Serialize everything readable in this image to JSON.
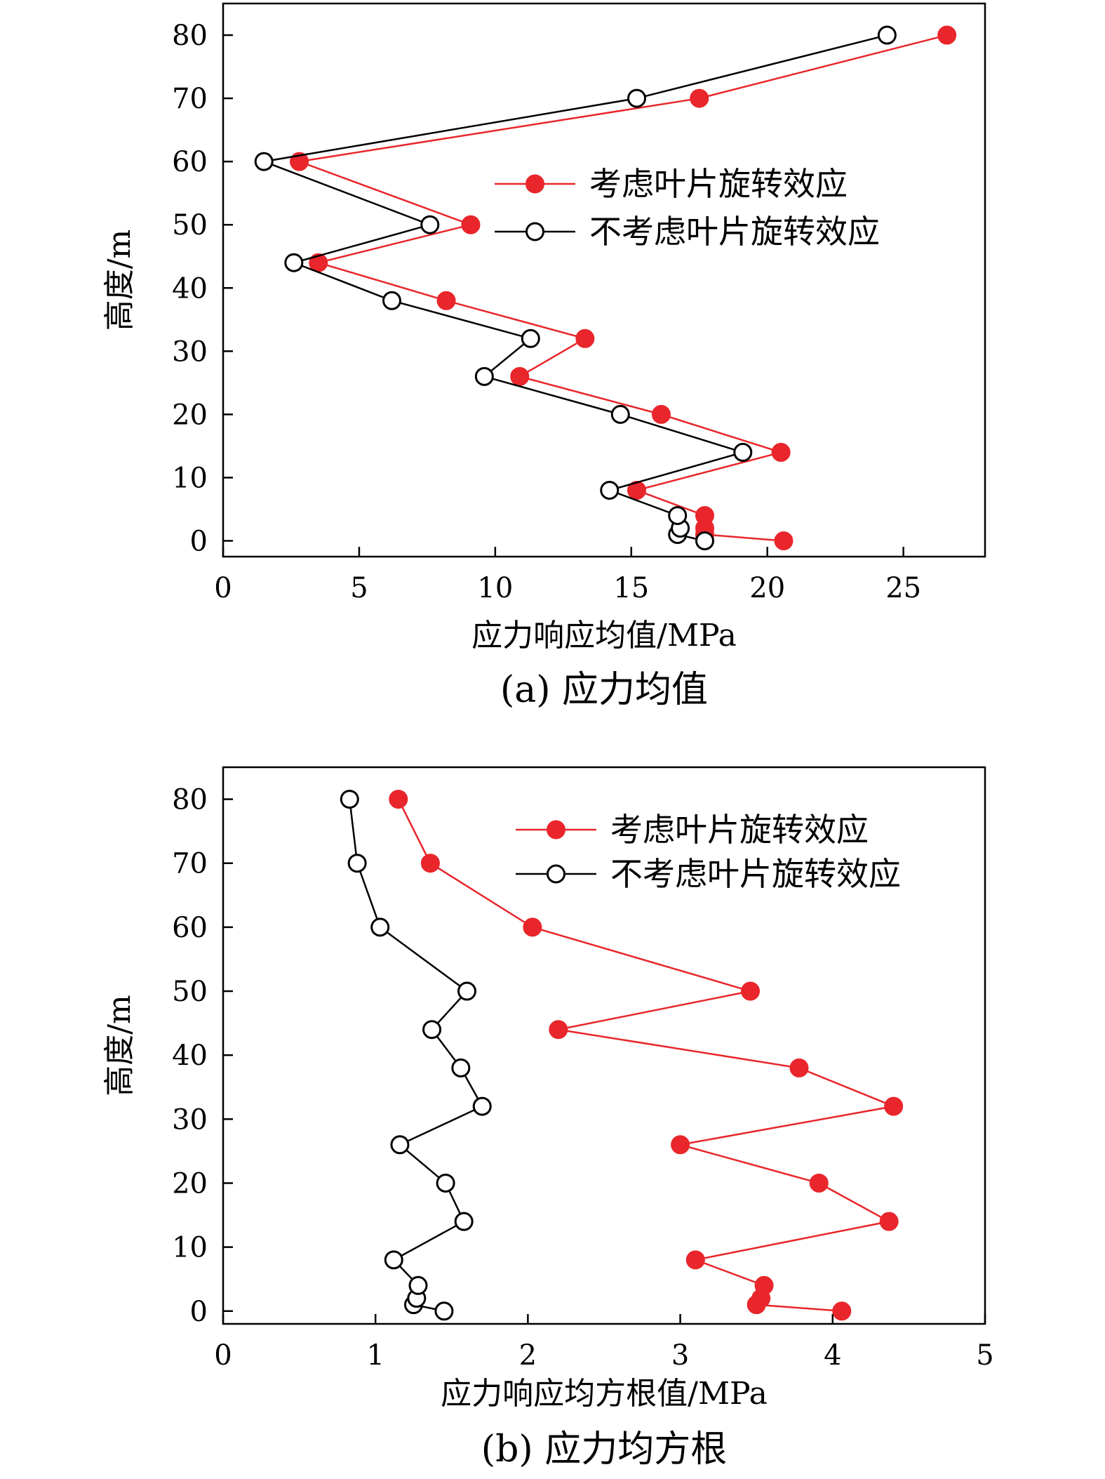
{
  "colors": {
    "considered": "#e8262b",
    "not_considered": "#000000",
    "axis": "#000000"
  },
  "chart_data": [
    {
      "type": "line",
      "caption": "(a) 应力均值",
      "xlabel": "应力响应均值/MPa",
      "ylabel": "高度/m",
      "xlim": [
        0,
        28
      ],
      "ylim": [
        -2.5,
        85
      ],
      "xticks": [
        0,
        5,
        10,
        15,
        20,
        25
      ],
      "yticks": [
        0,
        10,
        20,
        30,
        40,
        50,
        60,
        70,
        80
      ],
      "grid": false,
      "legend_position": "upper-right",
      "series": [
        {
          "name": "考虑叶片旋转效应",
          "color": "#e8262b",
          "marker": "filled-circle",
          "points": [
            [
              20.6,
              0
            ],
            [
              17.7,
              1
            ],
            [
              17.7,
              2
            ],
            [
              17.7,
              4
            ],
            [
              15.2,
              8
            ],
            [
              20.5,
              14
            ],
            [
              16.1,
              20
            ],
            [
              10.9,
              26
            ],
            [
              13.3,
              32
            ],
            [
              8.2,
              38
            ],
            [
              3.5,
              44
            ],
            [
              9.1,
              50
            ],
            [
              2.8,
              60
            ],
            [
              17.5,
              70
            ],
            [
              26.6,
              80
            ]
          ]
        },
        {
          "name": "不考虑叶片旋转效应",
          "color": "#000000",
          "marker": "open-circle",
          "points": [
            [
              17.7,
              0
            ],
            [
              16.7,
              1
            ],
            [
              16.8,
              2
            ],
            [
              16.7,
              4
            ],
            [
              14.2,
              8
            ],
            [
              19.1,
              14
            ],
            [
              14.6,
              20
            ],
            [
              9.6,
              26
            ],
            [
              11.3,
              32
            ],
            [
              6.2,
              38
            ],
            [
              2.6,
              44
            ],
            [
              7.6,
              50
            ],
            [
              1.5,
              60
            ],
            [
              15.2,
              70
            ],
            [
              24.4,
              80
            ]
          ]
        }
      ]
    },
    {
      "type": "line",
      "caption": "(b) 应力均方根",
      "xlabel": "应力响应均方根值/MPa",
      "ylabel": "高度/m",
      "xlim": [
        0,
        5
      ],
      "ylim": [
        -2,
        85
      ],
      "xticks": [
        0,
        1,
        2,
        3,
        4,
        5
      ],
      "yticks": [
        0,
        10,
        20,
        30,
        40,
        50,
        60,
        70,
        80
      ],
      "grid": false,
      "legend_position": "upper-right",
      "series": [
        {
          "name": "考虑叶片旋转效应",
          "color": "#e8262b",
          "marker": "filled-circle",
          "points": [
            [
              4.06,
              0
            ],
            [
              3.5,
              1
            ],
            [
              3.53,
              2
            ],
            [
              3.55,
              4
            ],
            [
              3.1,
              8
            ],
            [
              4.37,
              14
            ],
            [
              3.91,
              20
            ],
            [
              3.0,
              26
            ],
            [
              4.4,
              32
            ],
            [
              3.78,
              38
            ],
            [
              2.2,
              44
            ],
            [
              3.46,
              50
            ],
            [
              2.03,
              60
            ],
            [
              1.36,
              70
            ],
            [
              1.15,
              80
            ]
          ]
        },
        {
          "name": "不考虑叶片旋转效应",
          "color": "#000000",
          "marker": "open-circle",
          "points": [
            [
              1.45,
              0
            ],
            [
              1.25,
              1
            ],
            [
              1.27,
              2
            ],
            [
              1.28,
              4
            ],
            [
              1.12,
              8
            ],
            [
              1.58,
              14
            ],
            [
              1.46,
              20
            ],
            [
              1.16,
              26
            ],
            [
              1.7,
              32
            ],
            [
              1.56,
              38
            ],
            [
              1.37,
              44
            ],
            [
              1.6,
              50
            ],
            [
              1.03,
              60
            ],
            [
              0.88,
              70
            ],
            [
              0.83,
              80
            ]
          ]
        }
      ]
    }
  ]
}
